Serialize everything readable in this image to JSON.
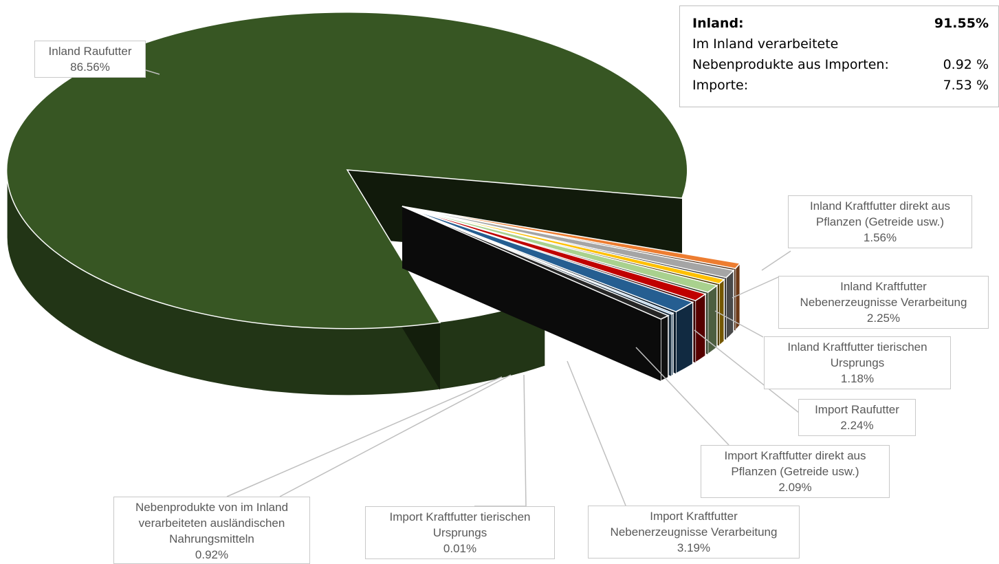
{
  "chart_data": {
    "type": "pie",
    "slices": [
      {
        "label": "Inland Raufutter",
        "value_text": "86.56%",
        "value": 86.56,
        "color": "#375623"
      },
      {
        "label": "Inland Kraftfutter direkt aus Pflanzen (Getreide usw.)",
        "value_text": "1.56%",
        "value": 1.56,
        "color": "#ED7D31"
      },
      {
        "label": "Inland Kraftfutter Nebenerzeugnisse Verarbeitung",
        "value_text": "2.25%",
        "value": 2.25,
        "color": "#A5A5A5"
      },
      {
        "label": "Inland Kraftfutter tierischen Ursprungs",
        "value_text": "1.18%",
        "value": 1.18,
        "color": "#FFC000"
      },
      {
        "label": "Import Raufutter",
        "value_text": "2.24%",
        "value": 2.24,
        "color": "#A9D18E"
      },
      {
        "label": "Import Kraftfutter direkt aus Pflanzen (Getreide usw.)",
        "value_text": "2.09%",
        "value": 2.09,
        "color": "#C00000"
      },
      {
        "label": "Import Kraftfutter Nebenerzeugnisse Verarbeitung",
        "value_text": "3.19%",
        "value": 3.19,
        "color": "#255E91"
      },
      {
        "label": "Import Kraftfutter tierischen Ursprungs",
        "value_text": "0.01%",
        "value": 0.01,
        "color": "#5B9BD5"
      },
      {
        "label": "Nebenprodukte von im Inland verarbeiteten ausländischen Nahrungsmitteln",
        "value_text": "0.92%",
        "value": 0.92,
        "color": "#262626"
      }
    ]
  },
  "summary": {
    "inland_label": "Inland:",
    "inland_value": "91.55%",
    "processed_line1": "Im Inland verarbeitete",
    "processed_line2": "Nebenprodukte aus Importen:",
    "processed_value": "0.92 %",
    "imports_label": "Importe:",
    "imports_value": "7.53 %"
  },
  "labels": {
    "inland_raufutter": {
      "line1": "Inland Raufutter",
      "pct": "86.56%"
    },
    "inland_kraft_pflanzen": {
      "line1": "Inland Kraftfutter direkt aus",
      "line2": "Pflanzen (Getreide usw.)",
      "pct": "1.56%"
    },
    "inland_kraft_neben": {
      "line1": "Inland Kraftfutter",
      "line2": "Nebenerzeugnisse Verarbeitung",
      "pct": "2.25%"
    },
    "inland_kraft_tier": {
      "line1": "Inland Kraftfutter tierischen",
      "line2": "Ursprungs",
      "pct": "1.18%"
    },
    "import_raufutter": {
      "line1": "Import Raufutter",
      "pct": "2.24%"
    },
    "import_kraft_pflanzen": {
      "line1": "Import Kraftfutter direkt aus",
      "line2": "Pflanzen (Getreide usw.)",
      "pct": "2.09%"
    },
    "import_kraft_neben": {
      "line1": "Import Kraftfutter",
      "line2": "Nebenerzeugnisse Verarbeitung",
      "pct": "3.19%"
    },
    "import_kraft_tier": {
      "line1": "Import Kraftfutter tierischen",
      "line2": "Ursprungs",
      "pct": "0.01%"
    },
    "nebenprodukte": {
      "line1": "Nebenprodukte von im Inland",
      "line2": "verarbeiteten ausländischen",
      "line3": "Nahrungsmitteln",
      "pct": "0.92%"
    }
  }
}
